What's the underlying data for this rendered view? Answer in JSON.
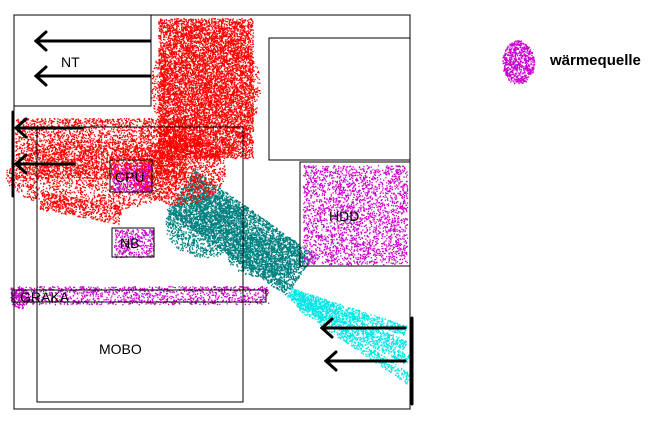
{
  "diagram": {
    "components": {
      "nt": "NT",
      "cpu": "CPU",
      "nb": "NB",
      "hdd": "HDD",
      "graka": "GRAKA",
      "mobo": "MOBO"
    },
    "legend": {
      "label": "wärmequelle"
    },
    "colors": {
      "case_outline": "#000000",
      "hot_air": "#ff0000",
      "warm_air": "#008080",
      "cool_air": "#00e5e5",
      "heat_source": "#cc00cc",
      "arrow": "#000000"
    }
  }
}
